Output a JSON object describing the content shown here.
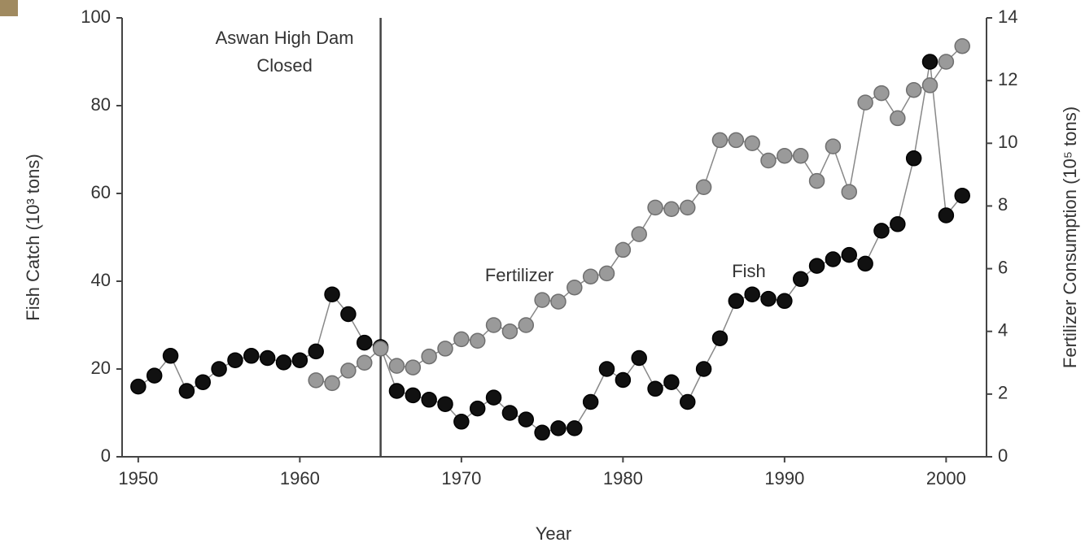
{
  "chart_data": {
    "type": "scatter",
    "x_label": "Year",
    "y_label": "Fish Catch (10³ tons)",
    "y2_label": "Fertilizer Consumption (10⁵ tons)",
    "x": [
      1950,
      1951,
      1952,
      1953,
      1954,
      1955,
      1956,
      1957,
      1958,
      1959,
      1960,
      1961,
      1962,
      1963,
      1964,
      1965,
      1966,
      1967,
      1968,
      1969,
      1970,
      1971,
      1972,
      1973,
      1974,
      1975,
      1976,
      1977,
      1978,
      1979,
      1980,
      1981,
      1982,
      1983,
      1984,
      1985,
      1986,
      1987,
      1988,
      1989,
      1990,
      1991,
      1992,
      1993,
      1994,
      1995,
      1996,
      1997,
      1998,
      1999,
      2000,
      2001
    ],
    "series": [
      {
        "name": "Fish",
        "color": "#111111",
        "values": [
          16,
          18.5,
          23,
          15,
          17,
          20,
          22,
          23,
          22.5,
          21.5,
          22,
          24,
          37,
          32.5,
          26,
          25,
          15,
          14,
          13,
          12,
          8,
          11,
          13.5,
          10,
          8.5,
          5.5,
          6.5,
          6.5,
          12.5,
          20,
          17.5,
          22.5,
          15.5,
          17,
          12.5,
          20,
          27,
          35.5,
          37,
          36,
          35.5,
          40.5,
          43.5,
          45,
          46,
          44,
          51.5,
          53,
          68,
          90,
          55,
          59.5
        ]
      },
      {
        "name": "Fertilizer",
        "color": "#9a9a9a",
        "axis": "y2",
        "values": [
          null,
          null,
          null,
          null,
          null,
          null,
          null,
          null,
          null,
          null,
          null,
          2.44,
          2.35,
          2.75,
          3.0,
          3.45,
          2.9,
          2.85,
          3.2,
          3.45,
          3.75,
          3.7,
          4.2,
          4.0,
          4.2,
          5.0,
          4.95,
          5.4,
          5.75,
          5.85,
          6.6,
          7.1,
          7.95,
          7.9,
          7.95,
          8.6,
          10.1,
          10.1,
          10.0,
          9.45,
          9.6,
          9.6,
          8.8,
          9.9,
          8.45,
          11.3,
          11.6,
          10.8,
          11.7,
          11.85,
          12.6,
          13.1
        ]
      }
    ],
    "xlim": [
      1949,
      2002.5
    ],
    "xticks": [
      1950,
      1960,
      1970,
      1980,
      1990,
      2000
    ],
    "ylim": [
      0,
      100
    ],
    "yticks": [
      0,
      20,
      40,
      60,
      80,
      100
    ],
    "y2lim": [
      0,
      14
    ],
    "y2ticks": [
      0,
      2,
      4,
      6,
      8,
      10,
      12,
      14
    ],
    "grid": false,
    "annotation": {
      "x": 1965,
      "lines": [
        "Aswan High Dam",
        "Closed"
      ]
    }
  }
}
